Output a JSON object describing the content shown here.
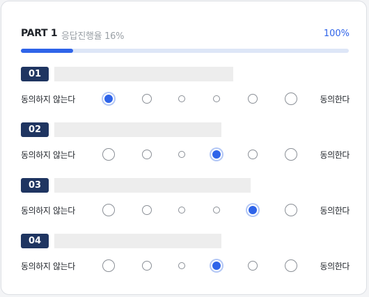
{
  "header": {
    "part": "PART 1",
    "progress_text": "응답진행율 16%",
    "total": "100%"
  },
  "progress": {
    "fraction": 0.16
  },
  "scale": {
    "left": "동의하지 않는다",
    "right": "동의한다",
    "points": 6
  },
  "questions": [
    {
      "number": "01",
      "selected": 1
    },
    {
      "number": "02",
      "selected": 4
    },
    {
      "number": "03",
      "selected": 5
    },
    {
      "number": "04",
      "selected": 4
    }
  ]
}
